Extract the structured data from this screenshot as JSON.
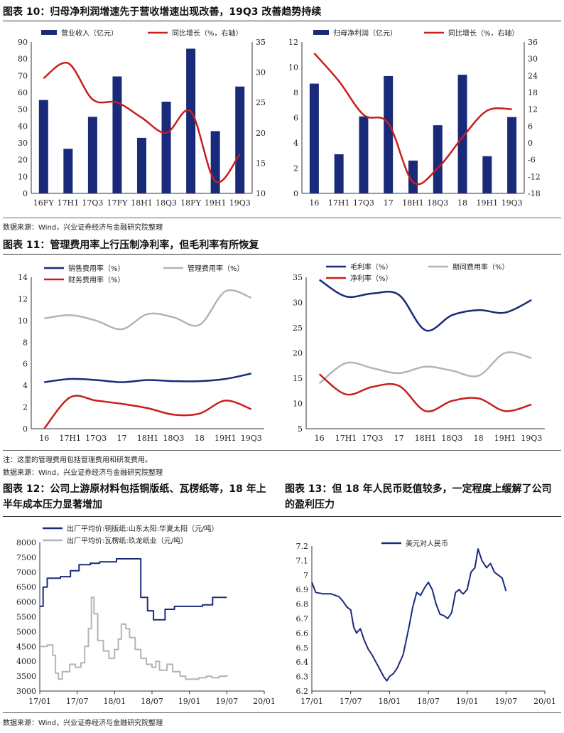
{
  "sections": {
    "fig10_title": "图表 10：归母净利润增速先于营收增速出现改善，19Q3 改善趋势持续",
    "fig11_title": "图表 11：管理费用率上行压制净利率，但毛利率有所恢复",
    "fig12_title": "图表 12：公司上游原材料包括铜版纸、瓦楞纸等，18 年上半年成本压力显著增加",
    "fig13_title": "图表 13：但 18 年人民币贬值较多，一定程度上缓解了公司的盈利压力",
    "source_1": "数据来源：Wind，兴业证券经济与金融研究院整理",
    "note_2": "注：这里的管理费用包括管理费用和研发费用。",
    "source_2": "数据来源：Wind，兴业证券经济与金融研究院整理",
    "source_3": "数据来源：Wind，兴业证券经济与金融研究院整理"
  },
  "colors": {
    "navy": "#1a2a7a",
    "red": "#c81e1e",
    "gray": "#b4b4b4"
  },
  "chart_data": [
    {
      "id": "revenue",
      "type": "bar",
      "categories": [
        "16FY",
        "17H1",
        "17Q3",
        "17FY",
        "18H1",
        "18Q3",
        "18FY",
        "19H1",
        "19Q3"
      ],
      "series": [
        {
          "name": "营业收入（亿元）",
          "type": "bar",
          "axis": "left",
          "color": "#1a2a7a",
          "values": [
            55.5,
            26.5,
            45.5,
            69.5,
            33,
            54.5,
            86,
            37,
            63.5
          ]
        },
        {
          "name": "同比增长（%，右轴）",
          "type": "line",
          "axis": "right",
          "color": "#c81e1e",
          "values": [
            29,
            31.5,
            25.5,
            25,
            22.5,
            20,
            23.5,
            12,
            16.5
          ]
        }
      ],
      "ylim": [
        0,
        90
      ],
      "yticks": [
        0,
        10,
        20,
        30,
        40,
        50,
        60,
        70,
        80,
        90
      ],
      "y2lim": [
        10,
        35
      ],
      "y2ticks": [
        10,
        15,
        20,
        25,
        30,
        35
      ]
    },
    {
      "id": "net_profit",
      "type": "bar",
      "categories": [
        "16",
        "17H1",
        "17Q3",
        "17",
        "18H1",
        "18Q3",
        "18",
        "19H1",
        "19Q3"
      ],
      "series": [
        {
          "name": "归母净利润（亿元）",
          "type": "bar",
          "axis": "left",
          "color": "#1a2a7a",
          "values": [
            8.7,
            3.1,
            6.1,
            9.3,
            2.6,
            5.4,
            9.4,
            2.95,
            6.05
          ]
        },
        {
          "name": "同比增长（%，右轴）",
          "type": "line",
          "axis": "right",
          "color": "#c81e1e",
          "values": [
            32,
            22,
            10,
            7,
            -14,
            -9,
            2,
            11.5,
            12
          ]
        }
      ],
      "ylim": [
        0,
        12
      ],
      "yticks": [
        0,
        2,
        4,
        6,
        8,
        10,
        12
      ],
      "y2lim": [
        -18,
        36
      ],
      "y2ticks": [
        -18,
        -12,
        -6,
        0,
        6,
        12,
        18,
        24,
        30,
        36
      ]
    },
    {
      "id": "expense_ratio",
      "type": "line",
      "categories": [
        "16",
        "17H1",
        "17Q3",
        "17",
        "18H1",
        "18Q3",
        "18",
        "19H1",
        "19Q3"
      ],
      "series": [
        {
          "name": "销售费用率（%）",
          "color": "#1a2a7a",
          "values": [
            4.3,
            4.6,
            4.5,
            4.3,
            4.5,
            4.4,
            4.4,
            4.6,
            5.1
          ]
        },
        {
          "name": "管理费用率（%）",
          "color": "#b4b4b4",
          "values": [
            10.2,
            10.5,
            10.0,
            9.2,
            10.6,
            10.3,
            9.6,
            12.7,
            12.1
          ]
        },
        {
          "name": "财务费用率（%）",
          "color": "#c81e1e",
          "values": [
            -0.2,
            2.9,
            2.6,
            2.3,
            1.9,
            1.3,
            1.4,
            2.6,
            1.8
          ]
        }
      ],
      "ylim": [
        0,
        14
      ],
      "yticks": [
        0,
        2,
        4,
        6,
        8,
        10,
        12,
        14
      ]
    },
    {
      "id": "margin",
      "type": "line",
      "categories": [
        "16",
        "17H1",
        "17Q3",
        "17",
        "18H1",
        "18Q3",
        "18",
        "19H1",
        "19Q3"
      ],
      "series": [
        {
          "name": "毛利率（%）",
          "color": "#1a2a7a",
          "values": [
            34.5,
            31.2,
            31.8,
            31.5,
            24.5,
            27.5,
            28.5,
            28.0,
            30.5
          ]
        },
        {
          "name": "期间费用率（%）",
          "color": "#b4b4b4",
          "values": [
            14.0,
            18.0,
            17.0,
            16.0,
            17.3,
            16.5,
            15.5,
            20.0,
            19.0
          ]
        },
        {
          "name": "净利率（%）",
          "color": "#c81e1e",
          "values": [
            15.8,
            11.8,
            13.3,
            13.5,
            8.5,
            10.5,
            11.0,
            8.5,
            9.8
          ]
        }
      ],
      "ylim": [
        5,
        35
      ],
      "yticks": [
        5,
        10,
        15,
        20,
        25,
        30,
        35
      ]
    },
    {
      "id": "paper_price",
      "type": "line",
      "x_range": [
        "2017-01",
        "2020-01"
      ],
      "xticks": [
        "17/01",
        "17/07",
        "18/01",
        "18/07",
        "19/01",
        "19/07",
        "20/01"
      ],
      "series": [
        {
          "name": "出厂平均价:铜版纸:山东太阳:华夏太阳（元/吨）",
          "color": "#1a2a7a",
          "step": true,
          "points": [
            [
              0,
              5850
            ],
            [
              0.05,
              5850
            ],
            [
              0.09,
              6500
            ],
            [
              0.16,
              6500
            ],
            [
              0.2,
              6800
            ],
            [
              0.5,
              6800
            ],
            [
              0.55,
              6850
            ],
            [
              0.75,
              6850
            ],
            [
              0.82,
              7050
            ],
            [
              1.0,
              7050
            ],
            [
              1.05,
              7250
            ],
            [
              1.3,
              7250
            ],
            [
              1.35,
              7300
            ],
            [
              1.55,
              7300
            ],
            [
              1.6,
              7350
            ],
            [
              1.95,
              7350
            ],
            [
              2.05,
              7450
            ],
            [
              2.68,
              7450
            ],
            [
              2.7,
              6150
            ],
            [
              2.85,
              6150
            ],
            [
              2.88,
              5700
            ],
            [
              3.0,
              5700
            ],
            [
              3.04,
              5400
            ],
            [
              3.3,
              5400
            ],
            [
              3.35,
              5750
            ],
            [
              3.55,
              5750
            ],
            [
              3.6,
              5850
            ],
            [
              4.3,
              5850
            ],
            [
              4.35,
              5900
            ],
            [
              4.6,
              5900
            ],
            [
              4.62,
              6150
            ],
            [
              5.0,
              6150
            ]
          ]
        },
        {
          "name": "出厂平均价:瓦楞纸:玖龙纸业（元/吨）",
          "color": "#b4b4b4",
          "step": true,
          "points": [
            [
              0,
              4500
            ],
            [
              0.2,
              4550
            ],
            [
              0.35,
              4200
            ],
            [
              0.42,
              3600
            ],
            [
              0.5,
              3400
            ],
            [
              0.6,
              3650
            ],
            [
              0.8,
              3900
            ],
            [
              0.95,
              3800
            ],
            [
              1.1,
              3950
            ],
            [
              1.2,
              4500
            ],
            [
              1.3,
              5100
            ],
            [
              1.38,
              6150
            ],
            [
              1.45,
              5600
            ],
            [
              1.55,
              4700
            ],
            [
              1.7,
              4350
            ],
            [
              1.85,
              4100
            ],
            [
              2.0,
              4400
            ],
            [
              2.1,
              4750
            ],
            [
              2.18,
              5250
            ],
            [
              2.3,
              5100
            ],
            [
              2.4,
              4800
            ],
            [
              2.55,
              4400
            ],
            [
              2.7,
              4100
            ],
            [
              2.85,
              3900
            ],
            [
              3.0,
              3800
            ],
            [
              3.1,
              4000
            ],
            [
              3.2,
              3700
            ],
            [
              3.4,
              3900
            ],
            [
              3.55,
              3650
            ],
            [
              3.75,
              3500
            ],
            [
              3.9,
              3400
            ],
            [
              4.1,
              3400
            ],
            [
              4.25,
              3450
            ],
            [
              4.45,
              3500
            ],
            [
              4.6,
              3450
            ],
            [
              4.8,
              3500
            ],
            [
              5.0,
              3550
            ]
          ]
        }
      ],
      "ylim": [
        3000,
        8000
      ],
      "yticks": [
        3000,
        3500,
        4000,
        4500,
        5000,
        5500,
        6000,
        6500,
        7000,
        7500,
        8000
      ]
    },
    {
      "id": "usdcny",
      "type": "line",
      "x_range": [
        "2017-01",
        "2020-01"
      ],
      "xticks": [
        "17/01",
        "17/07",
        "18/01",
        "18/07",
        "19/01",
        "19/07",
        "20/01"
      ],
      "series": [
        {
          "name": "美元对人民币",
          "color": "#1a2a7a",
          "points": [
            [
              0,
              6.95
            ],
            [
              0.1,
              6.88
            ],
            [
              0.3,
              6.87
            ],
            [
              0.5,
              6.87
            ],
            [
              0.7,
              6.85
            ],
            [
              0.8,
              6.82
            ],
            [
              0.9,
              6.78
            ],
            [
              1.0,
              6.76
            ],
            [
              1.08,
              6.64
            ],
            [
              1.15,
              6.6
            ],
            [
              1.25,
              6.63
            ],
            [
              1.35,
              6.55
            ],
            [
              1.45,
              6.49
            ],
            [
              1.55,
              6.45
            ],
            [
              1.65,
              6.4
            ],
            [
              1.75,
              6.35
            ],
            [
              1.85,
              6.3
            ],
            [
              1.93,
              6.27
            ],
            [
              2.0,
              6.3
            ],
            [
              2.1,
              6.32
            ],
            [
              2.2,
              6.36
            ],
            [
              2.35,
              6.45
            ],
            [
              2.5,
              6.64
            ],
            [
              2.6,
              6.78
            ],
            [
              2.7,
              6.88
            ],
            [
              2.8,
              6.86
            ],
            [
              2.9,
              6.91
            ],
            [
              3.0,
              6.95
            ],
            [
              3.1,
              6.9
            ],
            [
              3.2,
              6.8
            ],
            [
              3.3,
              6.73
            ],
            [
              3.4,
              6.72
            ],
            [
              3.5,
              6.7
            ],
            [
              3.6,
              6.74
            ],
            [
              3.7,
              6.88
            ],
            [
              3.8,
              6.9
            ],
            [
              3.85,
              6.88
            ],
            [
              3.9,
              6.87
            ],
            [
              4.0,
              6.9
            ],
            [
              4.1,
              7.02
            ],
            [
              4.2,
              7.05
            ],
            [
              4.28,
              7.18
            ],
            [
              4.38,
              7.1
            ],
            [
              4.5,
              7.05
            ],
            [
              4.6,
              7.08
            ],
            [
              4.7,
              7.02
            ],
            [
              4.8,
              7.0
            ],
            [
              4.9,
              6.98
            ],
            [
              5.0,
              6.89
            ]
          ]
        }
      ],
      "ylim": [
        6.2,
        7.2
      ],
      "yticks": [
        6.2,
        6.3,
        6.4,
        6.5,
        6.6,
        6.7,
        6.8,
        6.9,
        7.0,
        7.1,
        7.2
      ]
    }
  ]
}
